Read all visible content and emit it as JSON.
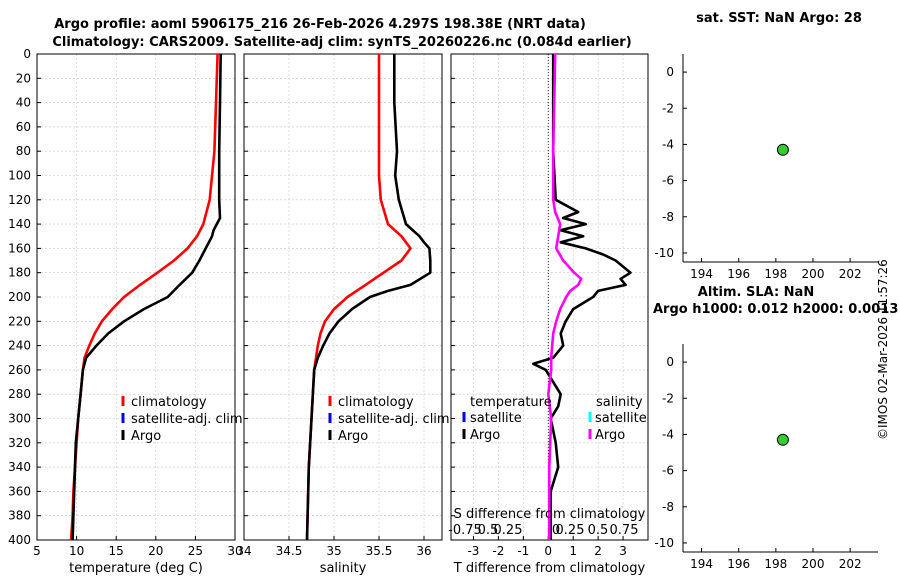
{
  "header": {
    "line1": "Argo profile: aoml 5906175_216 26-Feb-2026 4.297S 198.38E (NRT data)",
    "line2": "Climatology: CARS2009. Satellite-adj clim: synTS_20260226.nc (0.084d earlier)"
  },
  "footer": {
    "stamp": "©IMOS 02-Mar-2026 11:57:26"
  },
  "colors": {
    "climatology": "#ff0000",
    "satellite_clim": "#0000ff",
    "argo": "#000000",
    "sat_salinity": "#00ffff",
    "argo_salinity": "#ff00ff",
    "marker": "#33cc33"
  },
  "chart_data": [
    {
      "id": "temperature",
      "type": "line",
      "xlabel": "temperature (deg C)",
      "xlim": [
        5,
        30
      ],
      "xticks": [
        "5",
        "10",
        "15",
        "20",
        "25",
        "30"
      ],
      "ylim": [
        0,
        400
      ],
      "yticks": [
        "0",
        "20",
        "40",
        "60",
        "80",
        "100",
        "120",
        "140",
        "160",
        "180",
        "200",
        "220",
        "240",
        "260",
        "280",
        "300",
        "320",
        "340",
        "360",
        "380",
        "400"
      ],
      "legend": [
        "climatology",
        "satellite-adj. clim",
        "Argo"
      ],
      "series": [
        {
          "name": "climatology",
          "color": "#ff0000",
          "depth": [
            0,
            40,
            80,
            120,
            140,
            150,
            160,
            170,
            180,
            190,
            200,
            210,
            220,
            230,
            240,
            250,
            260,
            280,
            300,
            320,
            340,
            360,
            380,
            400
          ],
          "values": [
            27.8,
            27.6,
            27.4,
            26.8,
            26.0,
            25.2,
            24.0,
            22.3,
            20.2,
            18.0,
            16.0,
            14.5,
            13.2,
            12.3,
            11.6,
            11.0,
            10.8,
            10.5,
            10.2,
            10.0,
            9.8,
            9.6,
            9.5,
            9.3
          ]
        },
        {
          "name": "Argo",
          "color": "#000000",
          "depth": [
            0,
            40,
            80,
            120,
            135,
            140,
            145,
            150,
            155,
            160,
            170,
            180,
            185,
            190,
            200,
            210,
            220,
            230,
            240,
            250,
            260,
            280,
            300,
            320,
            340,
            360,
            380,
            400
          ],
          "values": [
            28.2,
            28.1,
            28.0,
            28.0,
            28.1,
            27.7,
            27.3,
            27.1,
            26.7,
            26.3,
            25.5,
            24.6,
            23.8,
            23.0,
            21.5,
            18.5,
            16.0,
            14.0,
            12.5,
            11.2,
            10.8,
            10.5,
            10.2,
            9.9,
            9.8,
            9.7,
            9.6,
            9.5
          ]
        }
      ]
    },
    {
      "id": "salinity",
      "type": "line",
      "xlabel": "salinity",
      "xlim": [
        34,
        36.2
      ],
      "xticks": [
        "34",
        "34.5",
        "35",
        "35.5",
        "36"
      ],
      "ylim": [
        0,
        400
      ],
      "legend": [
        "climatology",
        "satellite-adj. clim",
        "Argo"
      ],
      "series": [
        {
          "name": "climatology",
          "color": "#ff0000",
          "depth": [
            0,
            20,
            40,
            60,
            80,
            100,
            120,
            140,
            150,
            160,
            170,
            180,
            190,
            200,
            210,
            220,
            230,
            240,
            250,
            260,
            300,
            340,
            400
          ],
          "values": [
            35.5,
            35.5,
            35.5,
            35.5,
            35.5,
            35.5,
            35.52,
            35.6,
            35.75,
            35.85,
            35.75,
            35.55,
            35.35,
            35.15,
            35.0,
            34.9,
            34.85,
            34.82,
            34.8,
            34.78,
            34.75,
            34.72,
            34.7
          ]
        },
        {
          "name": "Argo",
          "color": "#000000",
          "depth": [
            0,
            40,
            80,
            100,
            120,
            140,
            150,
            155,
            160,
            170,
            180,
            190,
            195,
            200,
            210,
            220,
            230,
            240,
            250,
            260,
            300,
            340,
            400
          ],
          "values": [
            35.67,
            35.67,
            35.7,
            35.68,
            35.72,
            35.8,
            35.95,
            36.0,
            36.06,
            36.07,
            36.07,
            35.85,
            35.6,
            35.4,
            35.2,
            35.05,
            34.95,
            34.88,
            34.82,
            34.78,
            34.75,
            34.72,
            34.7
          ]
        }
      ]
    },
    {
      "id": "differences",
      "type": "line",
      "xlabel": "T difference from climatology",
      "xlabel_top": "S difference from climatology",
      "xlim": [
        -3.9,
        4.0
      ],
      "xticks": [
        "-3",
        "-2",
        "-1",
        "0",
        "1",
        "2",
        "3"
      ],
      "xticks_top": [
        "-0.75",
        "0.5",
        "0.25",
        "0",
        "0.25",
        "0.5",
        "0.75"
      ],
      "ylim": [
        0,
        400
      ],
      "legend_temperature": {
        "title": "temperature",
        "items": [
          "satellite",
          "Argo"
        ]
      },
      "legend_salinity": {
        "title": "salinity",
        "items": [
          "satellite",
          "Argo"
        ]
      },
      "series": [
        {
          "name": "T Argo - clim",
          "color": "#000000",
          "depth": [
            0,
            40,
            80,
            120,
            130,
            135,
            140,
            145,
            150,
            155,
            160,
            165,
            170,
            175,
            180,
            185,
            190,
            195,
            200,
            210,
            220,
            230,
            240,
            250,
            255,
            260,
            270,
            280,
            290,
            300,
            320,
            340,
            360,
            380,
            400
          ],
          "values": [
            0.2,
            0.2,
            0.2,
            0.3,
            1.2,
            0.6,
            1.5,
            0.5,
            1.4,
            0.5,
            1.5,
            2.2,
            2.7,
            3.0,
            3.3,
            2.9,
            3.1,
            2.0,
            1.8,
            1.0,
            0.7,
            0.5,
            0.6,
            0.2,
            -0.6,
            -0.1,
            0.2,
            0.5,
            0.4,
            0.1,
            0.3,
            0.4,
            0.1,
            0.1,
            0.1
          ]
        },
        {
          "name": "S Argo - clim",
          "color": "#ff00ff",
          "depth": [
            0,
            40,
            80,
            120,
            130,
            140,
            150,
            160,
            170,
            180,
            185,
            190,
            195,
            200,
            210,
            220,
            230,
            240,
            250,
            260,
            280,
            300,
            320,
            340,
            360,
            380,
            400
          ],
          "values": [
            0.07,
            0.06,
            0.05,
            0.05,
            0.07,
            0.12,
            0.1,
            0.08,
            0.15,
            0.26,
            0.33,
            0.3,
            0.22,
            0.18,
            0.12,
            0.08,
            0.05,
            0.04,
            0.03,
            0.03,
            0.0,
            0.03,
            0.02,
            0.01,
            0.01,
            0.01,
            0.01
          ]
        }
      ]
    },
    {
      "id": "sst",
      "type": "scatter",
      "title": "sat. SST: NaN Argo: 28",
      "xlim": [
        193,
        203.5
      ],
      "xticks": [
        "194",
        "196",
        "198",
        "200",
        "202"
      ],
      "ylim": [
        -10.5,
        1
      ],
      "yticks": [
        "0",
        "-2",
        "-4",
        "-6",
        "-8",
        "-10"
      ],
      "points": [
        {
          "x": 198.38,
          "y": -4.297
        }
      ]
    },
    {
      "id": "sla",
      "type": "scatter",
      "title": "Altim. SLA: NaN",
      "subtitle": "Argo h1000: 0.012 h2000: 0.0013",
      "xlim": [
        193,
        203.5
      ],
      "xticks": [
        "194",
        "196",
        "198",
        "200",
        "202"
      ],
      "ylim": [
        -10.5,
        1
      ],
      "yticks": [
        "0",
        "-2",
        "-4",
        "-6",
        "-8",
        "-10"
      ],
      "points": [
        {
          "x": 198.38,
          "y": -4.297
        }
      ]
    }
  ]
}
